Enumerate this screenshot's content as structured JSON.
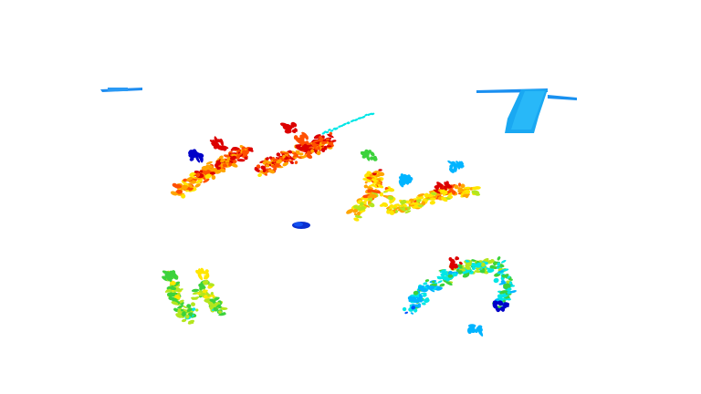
{
  "scene": {
    "background": "#ffffff",
    "description_visible_text": "",
    "colormap": [
      "#0000c8",
      "#0050ff",
      "#00b4ff",
      "#00e6e6",
      "#3cd23c",
      "#b4e61e",
      "#ffe600",
      "#ffa500",
      "#ff5000",
      "#dc0000"
    ],
    "clusters": [
      {
        "name": "top-left-streak",
        "color_range": [
          1,
          2
        ]
      },
      {
        "name": "top-right-plate",
        "color_range": [
          1,
          2
        ]
      },
      {
        "name": "center-left-foliage",
        "color_range": [
          1,
          9
        ]
      },
      {
        "name": "center-mid-foliage",
        "color_range": [
          1,
          9
        ]
      },
      {
        "name": "center-right-foliage",
        "color_range": [
          1,
          9
        ]
      },
      {
        "name": "small-blue-blob",
        "color_range": [
          0,
          1
        ]
      },
      {
        "name": "bottom-left-foliage",
        "color_range": [
          2,
          8
        ]
      },
      {
        "name": "bottom-right-foliage",
        "color_range": [
          1,
          9
        ]
      }
    ]
  }
}
